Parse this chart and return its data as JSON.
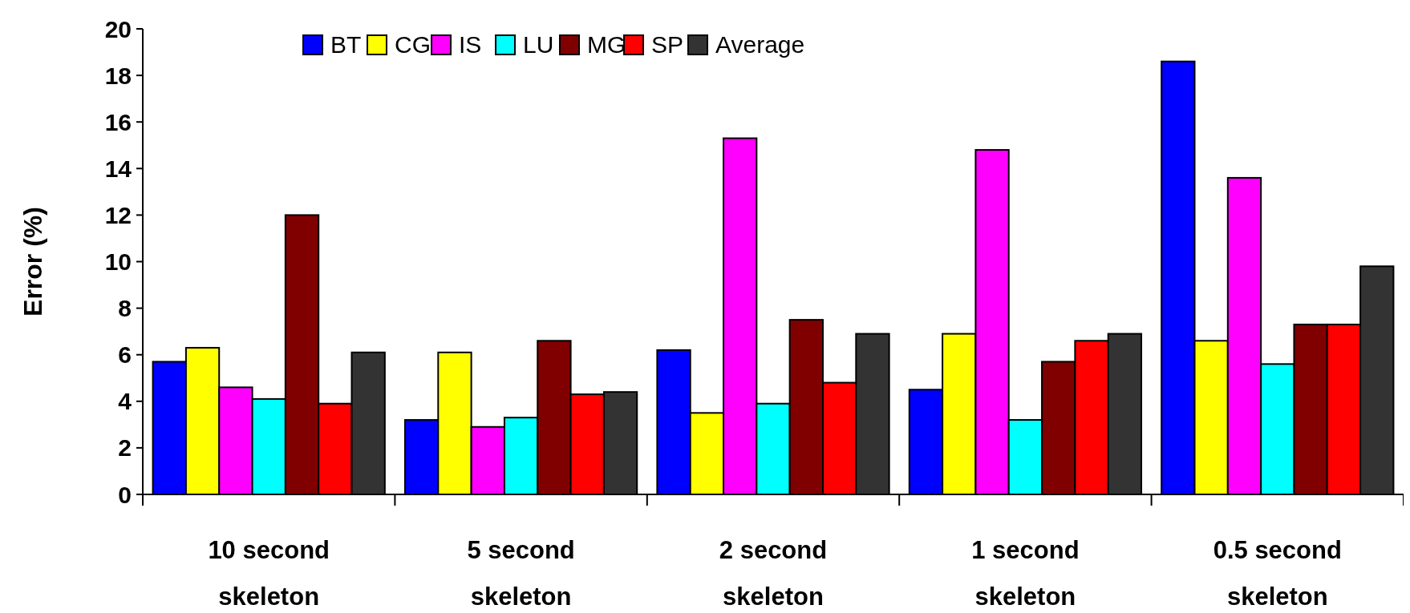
{
  "chart_data": {
    "type": "bar",
    "ylabel": "Error (%)",
    "categories": [
      "10 second skeleton",
      "5 second skeleton",
      "2 second skeleton",
      "1 second skeleton",
      "0.5 second skeleton"
    ],
    "series": [
      {
        "name": "BT",
        "color": "#0000ff",
        "values": [
          5.7,
          3.2,
          6.2,
          4.5,
          18.6
        ]
      },
      {
        "name": "CG",
        "color": "#ffff00",
        "values": [
          6.3,
          6.1,
          3.5,
          6.9,
          6.6
        ]
      },
      {
        "name": "IS",
        "color": "#ff00ff",
        "values": [
          4.6,
          2.9,
          15.3,
          14.8,
          13.6
        ]
      },
      {
        "name": "LU",
        "color": "#00ffff",
        "values": [
          4.1,
          3.3,
          3.9,
          3.2,
          5.6
        ]
      },
      {
        "name": "MG",
        "color": "#800000",
        "values": [
          12.0,
          6.6,
          7.5,
          5.7,
          7.3
        ]
      },
      {
        "name": "SP",
        "color": "#ff0000",
        "values": [
          3.9,
          4.3,
          4.8,
          6.6,
          7.3
        ]
      },
      {
        "name": "Average",
        "color": "#333333",
        "values": [
          6.1,
          4.4,
          6.9,
          6.9,
          9.8
        ]
      }
    ],
    "ylim": [
      0,
      20
    ],
    "yticks": [
      0,
      2,
      4,
      6,
      8,
      10,
      12,
      14,
      16,
      18,
      20
    ],
    "grid": false,
    "legend": "top"
  }
}
